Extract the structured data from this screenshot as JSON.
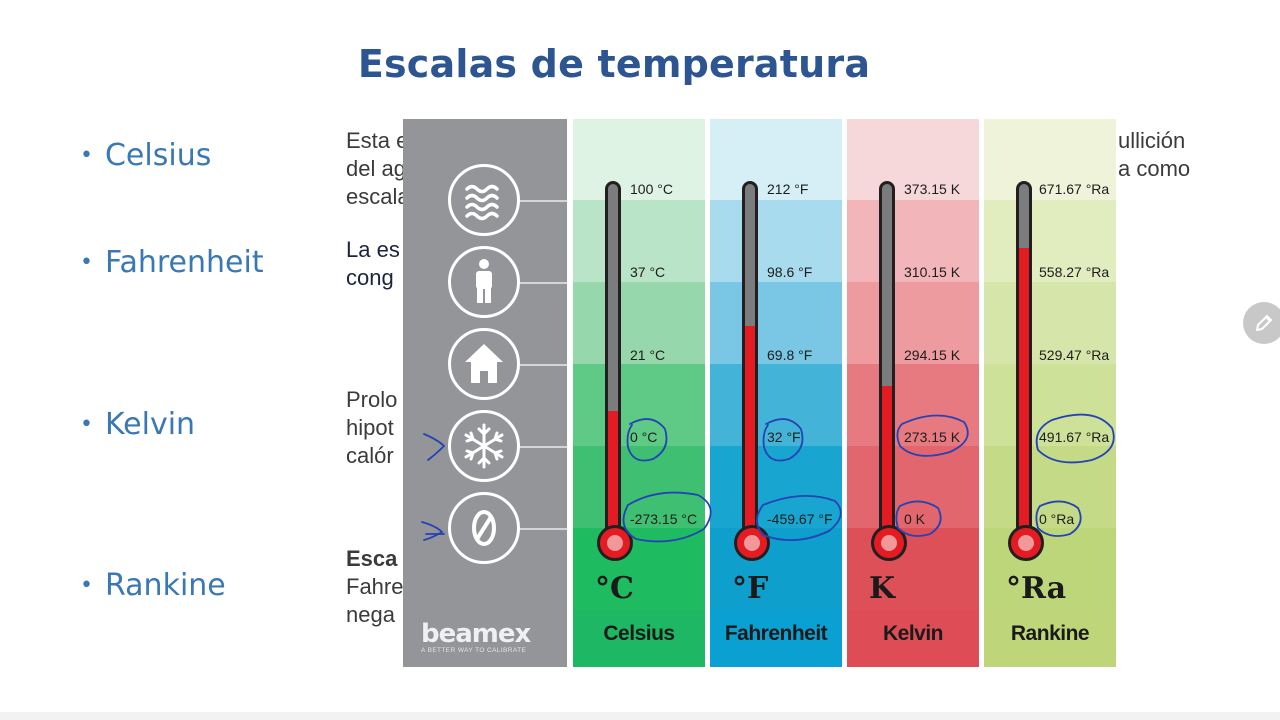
{
  "title": "Escalas  de temperatura",
  "bullets": [
    {
      "label": "Celsius"
    },
    {
      "label": "Fahrenheit"
    },
    {
      "label": "Kelvin"
    },
    {
      "label": "Rankine"
    }
  ],
  "paragraphs": {
    "p1": [
      "Esta e",
      "del ag",
      "escala"
    ],
    "p1_right": [
      "ullición",
      "a como"
    ],
    "p2": [
      "La es",
      "cong"
    ],
    "p3": [
      "Prolo",
      "hipot",
      "calór"
    ],
    "p4_bold": "Esca",
    "p4": [
      "Fahre",
      "nega"
    ]
  },
  "infographic": {
    "brand": "beamex",
    "brand_tagline": "A BETTER WAY TO CALIBRATE",
    "icons": [
      "waves-icon",
      "person-icon",
      "house-icon",
      "snowflake-icon",
      "zero-icon"
    ],
    "scales": [
      {
        "symbol": "°C",
        "name": "Celsius",
        "ticks": [
          "100 °C",
          "37 °C",
          "21 °C",
          "0 °C",
          "-273.15 °C"
        ],
        "fill_fraction": 0.36,
        "colors": [
          "#def3e4",
          "#b9e4c7",
          "#96d8ac",
          "#5fc986",
          "#3fbf72",
          "#1fbb61",
          "#1eb864"
        ]
      },
      {
        "symbol": "°F",
        "name": "Fahrenheit",
        "ticks": [
          "212 °F",
          "98.6 °F",
          "69.8 °F",
          "32 °F",
          "-459.67 °F"
        ],
        "fill_fraction": 0.6,
        "colors": [
          "#d6eef5",
          "#a8dbed",
          "#79c7e4",
          "#43b4d8",
          "#18a5d0",
          "#0e9fcc",
          "#0aa0d2"
        ]
      },
      {
        "symbol": "K",
        "name": "Kelvin",
        "ticks": [
          "373.15 K",
          "310.15 K",
          "294.15 K",
          "273.15 K",
          "0 K"
        ],
        "fill_fraction": 0.43,
        "colors": [
          "#f7d8da",
          "#f2b6ba",
          "#ee9ba0",
          "#e67a80",
          "#e1666d",
          "#dd5058",
          "#de4d55"
        ]
      },
      {
        "symbol": "°Ra",
        "name": "Rankine",
        "ticks": [
          "671.67 °Ra",
          "558.27 °Ra",
          "529.47 °Ra",
          "491.67 °Ra",
          "0 °Ra"
        ],
        "fill_fraction": 0.82,
        "colors": [
          "#eef3da",
          "#e1ecbf",
          "#d6e6aa",
          "#cde199",
          "#c4da86",
          "#bed67a",
          "#bfd57a"
        ]
      }
    ]
  },
  "colors": {
    "title": "#2d5591",
    "bullet": "#3a78b5",
    "icon_panel": "#939598",
    "mercury": "#e31b23",
    "ink": "#2443b5"
  }
}
